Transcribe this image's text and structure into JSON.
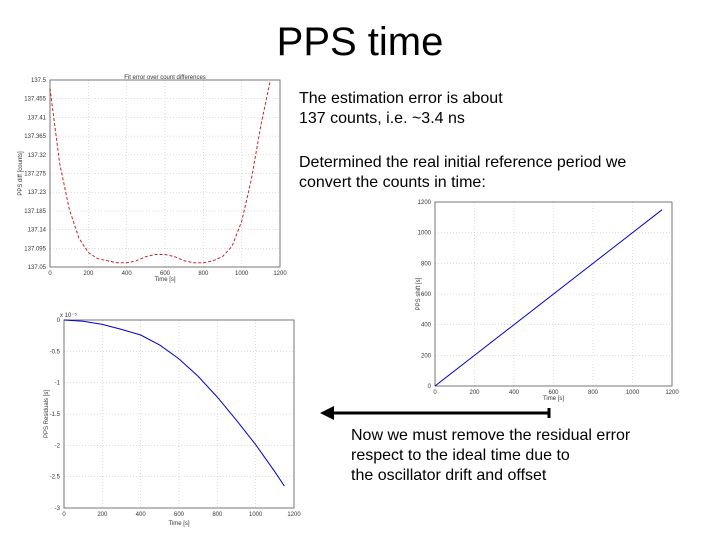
{
  "slide": {
    "title": "PPS time",
    "text1": [
      "The estimation error is about",
      "137 counts, i.e. ~3.4 ns"
    ],
    "text2": [
      "Determined the real initial reference period we",
      "convert the counts in time:"
    ],
    "text3": [
      "Now we must remove the residual error",
      "respect to the ideal time due to",
      "the oscillator drift and offset"
    ]
  },
  "colors": {
    "accent_line": "#0000cc",
    "error_curve": "#cc2222",
    "arrow": "#000000"
  },
  "chart_data": [
    {
      "type": "line",
      "title": "Fit error over count differences",
      "xlabel": "Time [s]",
      "ylabel": "PPS diff [counts]",
      "xlim": [
        0,
        1200
      ],
      "ylim": [
        137.05,
        137.5
      ],
      "x_ticks": [
        "0",
        "200",
        "400",
        "600",
        "800",
        "1000",
        "1200"
      ],
      "y_ticks": [
        "137.5",
        "137.455",
        "137.41",
        "137.365",
        "137.32",
        "137.275",
        "137.23",
        "137.185",
        "137.14",
        "137.095",
        "137.05"
      ],
      "grid": true,
      "series": [
        {
          "x": [
            0,
            50,
            100,
            150,
            200,
            250,
            300,
            350,
            400,
            450,
            500,
            550,
            600,
            650,
            700,
            750,
            800,
            850,
            900,
            950,
            1000,
            1050,
            1100,
            1150
          ],
          "y": [
            137.48,
            137.3,
            137.19,
            137.12,
            137.085,
            137.07,
            137.065,
            137.06,
            137.06,
            137.065,
            137.075,
            137.08,
            137.08,
            137.075,
            137.065,
            137.06,
            137.06,
            137.065,
            137.075,
            137.1,
            137.16,
            137.26,
            137.39,
            137.5
          ]
        }
      ]
    },
    {
      "type": "line",
      "title": "",
      "xlabel": "Time [s]",
      "ylabel": "PPS shift [s]",
      "xlim": [
        0,
        1200
      ],
      "ylim": [
        0,
        1200
      ],
      "x_ticks": [
        "0",
        "200",
        "400",
        "600",
        "800",
        "1000",
        "1200"
      ],
      "y_ticks": [
        "1200",
        "1000",
        "800",
        "600",
        "400",
        "200",
        "0"
      ],
      "grid": true,
      "series": [
        {
          "x": [
            0,
            1150
          ],
          "y": [
            0,
            1150
          ]
        }
      ]
    },
    {
      "type": "line",
      "title": "",
      "multiplier": "x 10⁻⁵",
      "xlabel": "Time [s]",
      "ylabel": "PPS Residuals [s]",
      "xlim": [
        0,
        1200
      ],
      "ylim": [
        -3,
        0
      ],
      "x_ticks": [
        "0",
        "200",
        "400",
        "600",
        "800",
        "1000",
        "1200"
      ],
      "y_ticks": [
        "0",
        "-0.5",
        "-1",
        "-1.5",
        "-2",
        "-2.5",
        "-3"
      ],
      "grid": true,
      "series": [
        {
          "x": [
            0,
            100,
            200,
            300,
            400,
            500,
            600,
            700,
            800,
            900,
            1000,
            1100,
            1150
          ],
          "y": [
            0,
            -0.02,
            -0.07,
            -0.15,
            -0.24,
            -0.4,
            -0.62,
            -0.9,
            -1.23,
            -1.6,
            -1.99,
            -2.42,
            -2.65
          ]
        }
      ]
    }
  ]
}
